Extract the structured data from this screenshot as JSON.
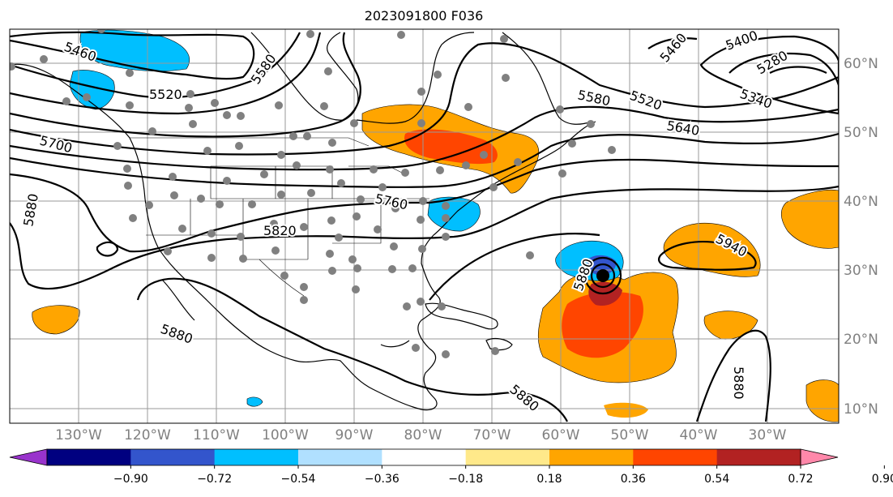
{
  "title": "2023091800 F036",
  "map": {
    "latitude_labels": [
      "60°N",
      "50°N",
      "40°N",
      "30°N",
      "20°N",
      "10°N"
    ],
    "longitude_labels": [
      "130°W",
      "120°W",
      "110°W",
      "100°W",
      "90°W",
      "80°W",
      "70°W",
      "60°W",
      "50°W",
      "40°W",
      "30°W"
    ],
    "contour_labels": [
      "5460",
      "5520",
      "5580",
      "5700",
      "5880",
      "5820",
      "5760",
      "5640",
      "5580",
      "5520",
      "5340",
      "5280",
      "5400",
      "5460",
      "5940",
      "5880",
      "5880",
      "5880",
      "5880"
    ]
  },
  "colorbar": {
    "colors": [
      "#9933cc",
      "#000080",
      "#3355cc",
      "#00bfff",
      "#b0e0ff",
      "#ffffff",
      "#ffe98a",
      "#ffa500",
      "#ff4500",
      "#b22222",
      "#ff88aa"
    ],
    "tick_labels": [
      "−0.90",
      "−0.72",
      "−0.54",
      "−0.36",
      "−0.18",
      "0.18",
      "0.36",
      "0.54",
      "0.72",
      "0.90"
    ]
  }
}
